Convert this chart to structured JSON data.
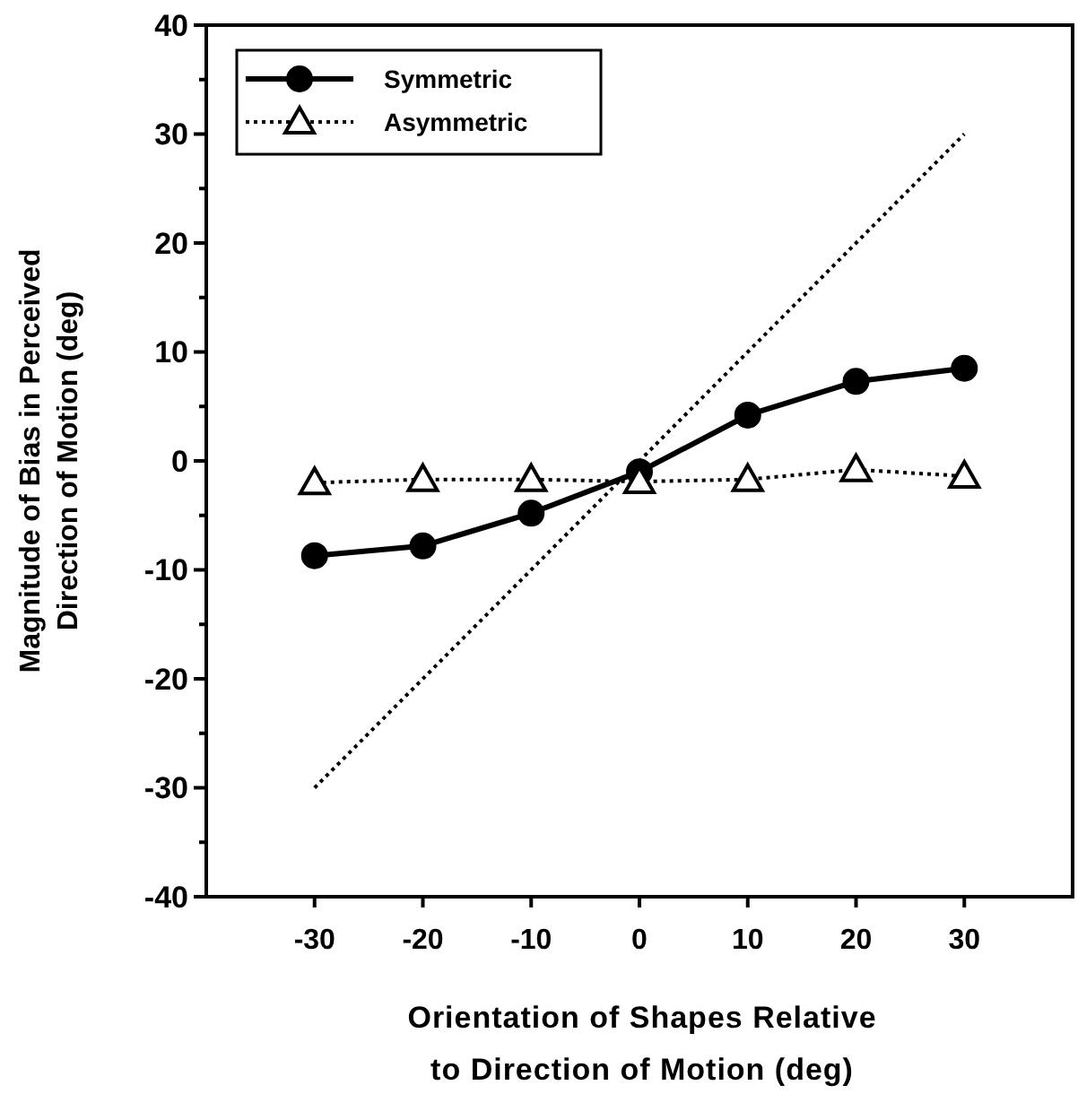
{
  "chart_data": {
    "type": "line",
    "xlabel": "Orientation of Shapes Relative\nto Direction of Motion (deg)",
    "ylabel": "Magnitude of Bias in Perceived\nDirection of Motion (deg)",
    "x": [
      -30,
      -20,
      -10,
      0,
      10,
      20,
      30
    ],
    "series": [
      {
        "name": "Symmetric",
        "color": "#000000",
        "values": [
          -8.7,
          -7.8,
          -4.8,
          -1.0,
          4.2,
          7.3,
          8.5
        ],
        "marker": "circle",
        "line_style": "solid"
      },
      {
        "name": "Asymmetric",
        "color": "#000000",
        "values": [
          -2.0,
          -1.7,
          -1.7,
          -1.9,
          -1.7,
          -0.8,
          -1.4
        ],
        "marker": "triangle",
        "line_style": "dotted"
      },
      {
        "color": "#000000",
        "x": [
          -30,
          30
        ],
        "values": [
          -30,
          30
        ],
        "marker": "none",
        "line_style": "dotted"
      }
    ],
    "xlim": [
      -40,
      40
    ],
    "xticks": [
      -30,
      -20,
      -10,
      0,
      10,
      20,
      30
    ],
    "ylim": [
      -40,
      40
    ],
    "yticks": [
      -40,
      {
        "value": -35,
        "label": null
      },
      -30,
      {
        "value": -25,
        "label": null
      },
      -20,
      {
        "value": -15,
        "label": null
      },
      -10,
      {
        "value": -5,
        "label": null
      },
      0,
      {
        "value": 5,
        "label": null
      },
      10,
      {
        "value": 15,
        "label": null
      },
      20,
      {
        "value": 25,
        "label": null
      },
      30,
      {
        "value": 35,
        "label": null
      },
      40
    ],
    "grid": false,
    "legend": "top left"
  }
}
